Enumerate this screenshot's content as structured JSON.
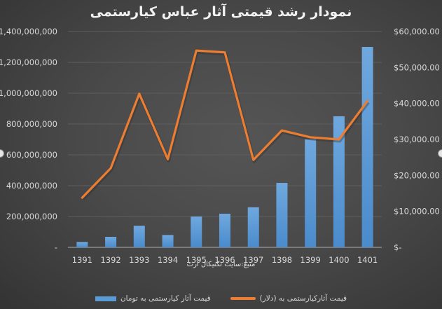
{
  "title": "نمودار رشد قیمتی آثار عباس کیارستمی",
  "source_note": "منبع:سایت تکنیکال آرت",
  "legend": {
    "bar_label": "قیمت آثار کیارستمی  به تومان",
    "line_label": "قیمت آثارکیارستمی  به (دلار)"
  },
  "colors": {
    "bar": "#5b9bd5",
    "line": "#ed7d31",
    "background": "#4a4a4a",
    "grid": "#5e5e5e",
    "text": "#d9d9d9"
  },
  "chart_data": {
    "type": "bar+line",
    "title": "نمودار رشد قیمتی آثار عباس کیارستمی",
    "categories": [
      "1391",
      "1392",
      "1393",
      "1394",
      "1395",
      "1396",
      "1397",
      "1398",
      "1399",
      "1400",
      "1401"
    ],
    "series": [
      {
        "name": "قیمت آثار کیارستمی  به تومان",
        "type": "bar",
        "axis": "left",
        "values": [
          35000000,
          68000000,
          140000000,
          80000000,
          200000000,
          218000000,
          260000000,
          418000000,
          700000000,
          850000000,
          1300000000
        ]
      },
      {
        "name": "قیمت آثارکیارستمی  به (دلار)",
        "type": "line",
        "axis": "right",
        "values": [
          13800,
          22000,
          42700,
          24500,
          54700,
          54200,
          24300,
          32500,
          30600,
          30000,
          40700
        ]
      }
    ],
    "left_axis": {
      "ylim": [
        0,
        1400000000
      ],
      "ticks": [
        "-",
        "200,000,000",
        "400,000,000",
        "600,000,000",
        "800,000,000",
        "1,000,000,000",
        "1,200,000,000",
        "1,400,000,000"
      ]
    },
    "right_axis": {
      "ylim": [
        0,
        60000
      ],
      "ticks": [
        "$-",
        "$10,000.00",
        "$20,000.00",
        "$30,000.00",
        "$40,000.00",
        "$50,000.00",
        "$60,000.00"
      ]
    },
    "xlabel": "منبع:سایت تکنیکال آرت",
    "grid": true,
    "legend_position": "bottom"
  }
}
